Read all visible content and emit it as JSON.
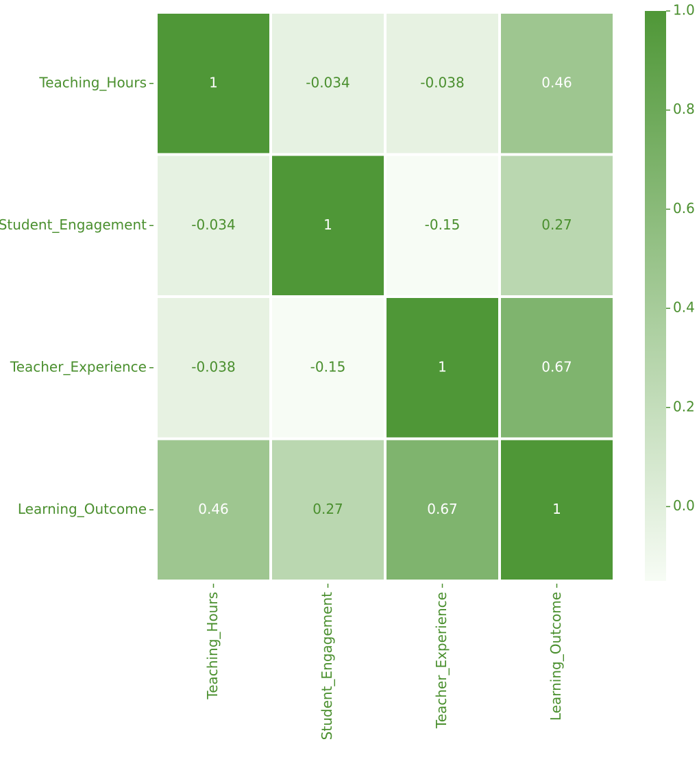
{
  "chart_data": {
    "type": "heatmap",
    "x_categories": [
      "Teaching_Hours",
      "Student_Engagement",
      "Teacher_Experience",
      "Learning_Outcome"
    ],
    "y_categories": [
      "Teaching_Hours",
      "Student_Engagement",
      "Teacher_Experience",
      "Learning_Outcome"
    ],
    "values": [
      [
        1,
        -0.034,
        -0.038,
        0.46
      ],
      [
        -0.034,
        1,
        -0.15,
        0.27
      ],
      [
        -0.038,
        -0.15,
        1,
        0.67
      ],
      [
        0.46,
        0.27,
        0.67,
        1
      ]
    ],
    "colormap": [
      "#f7fcf5",
      "#4f9737"
    ],
    "text_color": "#4a8f2e",
    "light_text_color": "#ffffff",
    "clim": [
      -0.15,
      1.0
    ],
    "cticks": [
      {
        "value": 0,
        "label": "0.0"
      },
      0.2,
      0.4,
      0.6,
      0.8,
      {
        "value": 1,
        "label": "1.0"
      }
    ]
  }
}
